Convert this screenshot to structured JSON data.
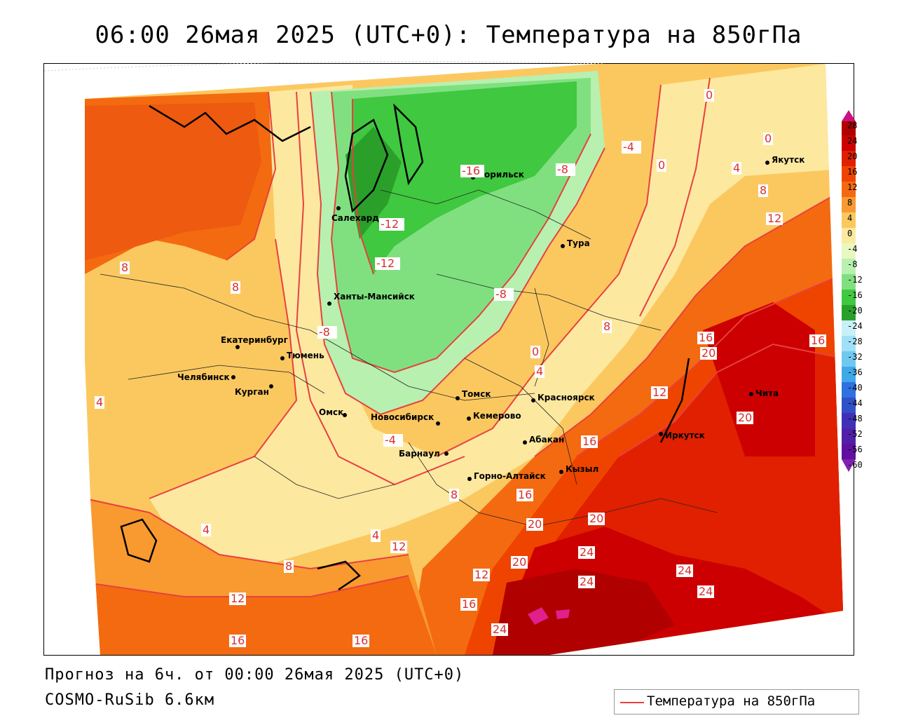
{
  "title": "06:00 26мая 2025 (UTC+0): Температура на 850гПа",
  "forecast_line": "Прогноз на 6ч. от 00:00 26мая 2025 (UTC+0)",
  "model_line": "COSMO-RuSib 6.6км",
  "legend_label": "Температура на 850гПа",
  "colors": {
    "isoline": "#e84040",
    "coast": "#000000"
  },
  "colorbar": {
    "levels": [
      "28",
      "24",
      "20",
      "16",
      "12",
      "8",
      "4",
      "0",
      "-4",
      "-8",
      "-12",
      "-16",
      "-20",
      "-24",
      "-28",
      "-32",
      "-36",
      "-40",
      "-44",
      "-48",
      "-52",
      "-56",
      "-60"
    ],
    "fills": [
      "#b00000",
      "#cc0000",
      "#e02000",
      "#ee4400",
      "#f46a10",
      "#f89a30",
      "#fbc860",
      "#fde8a0",
      "#e8f8c0",
      "#b8f0b0",
      "#80e080",
      "#40c840",
      "#2aa02a",
      "#c8f0f8",
      "#a0e0f8",
      "#70c8f0",
      "#40a8e8",
      "#3070e0",
      "#3050c8",
      "#4030b8",
      "#5020a8",
      "#6010a0"
    ]
  },
  "cities": [
    {
      "name": "Якутск"
    },
    {
      "name": "Норильск"
    },
    {
      "name": "Салехард"
    },
    {
      "name": "Тура"
    },
    {
      "name": "Ханты-Мансийск"
    },
    {
      "name": "Екатеринбург"
    },
    {
      "name": "Тюмень"
    },
    {
      "name": "Челябинск"
    },
    {
      "name": "Курган"
    },
    {
      "name": "Омск"
    },
    {
      "name": "Томск"
    },
    {
      "name": "Новосибирск"
    },
    {
      "name": "Кемерово"
    },
    {
      "name": "Красноярск"
    },
    {
      "name": "Барнаул"
    },
    {
      "name": "Абакан"
    },
    {
      "name": "Горно-Алтайск"
    },
    {
      "name": "Кызыл"
    },
    {
      "name": "Иркутск"
    },
    {
      "name": "Чита"
    }
  ],
  "isoline_labels": [
    "0",
    "0",
    "-4",
    "0",
    "4",
    "8",
    "12",
    "8",
    "8",
    "4",
    "-16",
    "-8",
    "-12",
    "-12",
    "-8",
    "-8",
    "-4",
    "0",
    "4",
    "8",
    "12",
    "16",
    "16",
    "20",
    "20",
    "12",
    "16",
    "20",
    "20",
    "24",
    "24",
    "20",
    "24",
    "24",
    "16",
    "12",
    "16",
    "8",
    "4",
    "4",
    "8",
    "12",
    "16",
    "16",
    "24"
  ]
}
